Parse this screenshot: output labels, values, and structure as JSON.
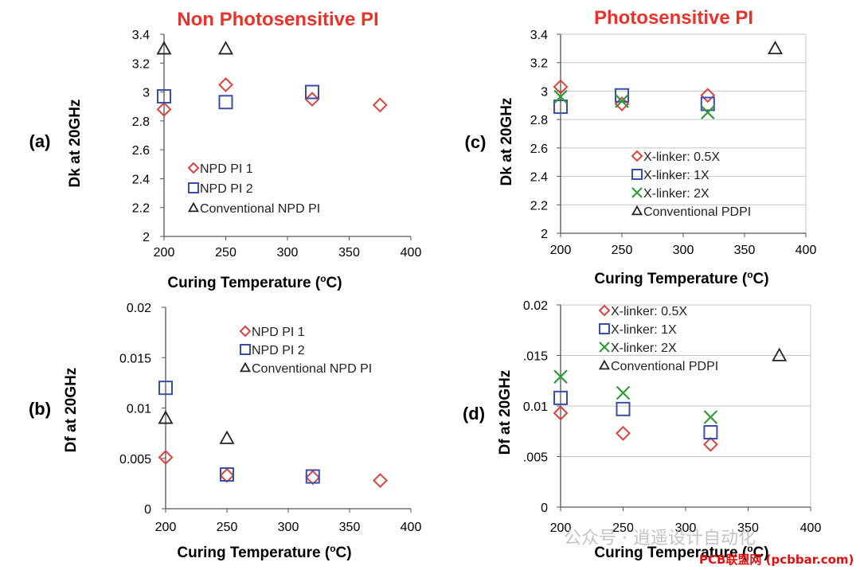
{
  "titles": {
    "left": "Non Photosensitive PI",
    "right": "Photosensitive PI"
  },
  "colors": {
    "d1": "#d9443f",
    "d2": "#3a4ea6",
    "d3": "#2f9a3a",
    "d4": "#222222",
    "title": "#e8322a",
    "axis": "#555555",
    "grid": "#c4c4c4"
  },
  "watermark": {
    "text": "公众号 · 逍遥设计自动化",
    "site": "PCB联盟网 (pcbbar.com)"
  },
  "chart_data": [
    {
      "id": "a",
      "type": "scatter",
      "panel_label": "(a)",
      "xlabel": "Curing Temperature",
      "xlabel_sup": "o",
      "xlabel_unit": "C)",
      "ylabel": "Dk at 20GHz",
      "xlim": [
        200,
        400
      ],
      "xticks": [
        "200",
        "250",
        "300",
        "350",
        "400"
      ],
      "ylim": [
        2,
        3.4
      ],
      "yticks": [
        "2",
        "2.2",
        "2.4",
        "2.6",
        "2.8",
        "3",
        "3.2",
        "3.4"
      ],
      "grid": false,
      "series": [
        {
          "name": "NPD PI 1",
          "marker": "diamond",
          "color": "#d9443f",
          "x": [
            200,
            250,
            320,
            375
          ],
          "y": [
            2.88,
            3.05,
            2.95,
            2.91
          ]
        },
        {
          "name": "NPD PI 2",
          "marker": "square",
          "color": "#3a4ea6",
          "x": [
            200,
            250,
            320
          ],
          "y": [
            2.97,
            2.93,
            3.0
          ]
        },
        {
          "name": "Conventional NPD PI",
          "marker": "triangle",
          "color": "#222222",
          "x": [
            200,
            250
          ],
          "y": [
            3.3,
            3.3
          ]
        }
      ]
    },
    {
      "id": "b",
      "type": "scatter",
      "panel_label": "(b)",
      "xlabel": "Curing Temperature",
      "xlabel_sup": "o",
      "xlabel_unit": "C)",
      "ylabel": "Df at 20GHz",
      "xlim": [
        200,
        400
      ],
      "xticks": [
        "200",
        "250",
        "300",
        "350",
        "400"
      ],
      "ylim": [
        0,
        0.02
      ],
      "yticks": [
        "0",
        "0.005",
        "0.01",
        "0.015",
        "0.02"
      ],
      "grid": false,
      "series": [
        {
          "name": "NPD PI 1",
          "marker": "diamond",
          "color": "#d9443f",
          "x": [
            200,
            250,
            320,
            375
          ],
          "y": [
            0.0051,
            0.0033,
            0.0031,
            0.0028
          ]
        },
        {
          "name": "NPD PI 2",
          "marker": "square",
          "color": "#3a4ea6",
          "x": [
            200,
            250,
            320
          ],
          "y": [
            0.012,
            0.0034,
            0.0032
          ]
        },
        {
          "name": "Conventional NPD PI",
          "marker": "triangle",
          "color": "#222222",
          "x": [
            200,
            250
          ],
          "y": [
            0.009,
            0.007
          ]
        }
      ]
    },
    {
      "id": "c",
      "type": "scatter",
      "panel_label": "(c)",
      "xlabel": "Curing Temperature",
      "xlabel_sup": "o",
      "xlabel_unit": "C)",
      "ylabel": "Dk at 20GHz",
      "xlim": [
        200,
        400
      ],
      "xticks": [
        "200",
        "250",
        "300",
        "350",
        "400"
      ],
      "ylim": [
        2,
        3.4
      ],
      "yticks": [
        "2",
        "2.2",
        "2.4",
        "2.6",
        "2.8",
        "3",
        "3.2",
        "3.4"
      ],
      "grid": true,
      "series": [
        {
          "name": "X-linker: 0.5X",
          "marker": "diamond",
          "color": "#d9443f",
          "x": [
            200,
            250,
            320
          ],
          "y": [
            3.03,
            2.91,
            2.97
          ]
        },
        {
          "name": "X-linker: 1X",
          "marker": "square",
          "color": "#3a4ea6",
          "x": [
            200,
            250,
            320
          ],
          "y": [
            2.89,
            2.97,
            2.91
          ]
        },
        {
          "name": "X-linker: 2X",
          "marker": "x",
          "color": "#2f9a3a",
          "x": [
            200,
            250,
            320
          ],
          "y": [
            2.96,
            2.93,
            2.85
          ]
        },
        {
          "name": "Conventional PDPI",
          "marker": "triangle",
          "color": "#222222",
          "x": [
            375
          ],
          "y": [
            3.3
          ]
        }
      ]
    },
    {
      "id": "d",
      "type": "scatter",
      "panel_label": "(d)",
      "xlabel": "Curing Temperature",
      "xlabel_sup": "o",
      "xlabel_unit": "C)",
      "ylabel": "Df at 20GHz",
      "xlim": [
        200,
        400
      ],
      "xticks": [
        "200",
        "250",
        "300",
        "350",
        "400"
      ],
      "ylim": [
        0,
        0.02
      ],
      "yticks": [
        "0",
        ".005",
        "0.01",
        ".015",
        "0.02"
      ],
      "grid": true,
      "series": [
        {
          "name": "X-linker: 0.5X",
          "marker": "diamond",
          "color": "#d9443f",
          "x": [
            200,
            250,
            320
          ],
          "y": [
            0.0093,
            0.0073,
            0.0062
          ]
        },
        {
          "name": "X-linker: 1X",
          "marker": "square",
          "color": "#3a4ea6",
          "x": [
            200,
            250,
            320
          ],
          "y": [
            0.0108,
            0.0097,
            0.0074
          ]
        },
        {
          "name": "X-linker: 2X",
          "marker": "x",
          "color": "#2f9a3a",
          "x": [
            200,
            250,
            320
          ],
          "y": [
            0.0129,
            0.0113,
            0.0089
          ]
        },
        {
          "name": "Conventional PDPI",
          "marker": "triangle",
          "color": "#222222",
          "x": [
            375
          ],
          "y": [
            0.015
          ]
        }
      ]
    }
  ]
}
